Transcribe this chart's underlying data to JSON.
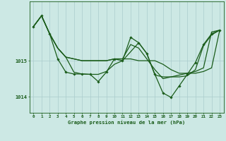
{
  "xlabel": "Graphe pression niveau de la mer (hPa)",
  "background_color": "#cce8e4",
  "grid_color": "#aacccc",
  "line_color": "#1a5c1a",
  "x_ticks": [
    0,
    1,
    2,
    3,
    4,
    5,
    6,
    7,
    8,
    9,
    10,
    11,
    12,
    13,
    14,
    15,
    16,
    17,
    18,
    19,
    20,
    21,
    22,
    23
  ],
  "y_ticks": [
    1014,
    1015
  ],
  "ylim": [
    1013.55,
    1016.65
  ],
  "xlim": [
    -0.5,
    23.5
  ],
  "series": [
    {
      "x": [
        0,
        1,
        2,
        3,
        4,
        5,
        6,
        7,
        8,
        9,
        10,
        11,
        12,
        13,
        14,
        15,
        16,
        17,
        18,
        19,
        20,
        21,
        22,
        23
      ],
      "y": [
        1015.95,
        1016.25,
        1015.75,
        1015.35,
        1015.1,
        1015.05,
        1015.0,
        1015.0,
        1015.0,
        1015.0,
        1015.05,
        1015.05,
        1015.05,
        1015.0,
        1015.0,
        1015.0,
        1014.9,
        1014.75,
        1014.65,
        1014.65,
        1014.65,
        1014.7,
        1014.8,
        1015.85
      ],
      "has_markers": false,
      "linewidth": 0.9
    },
    {
      "x": [
        0,
        1,
        2,
        3,
        4,
        5,
        6,
        7,
        8,
        9,
        10,
        11,
        12,
        13,
        14,
        15,
        16,
        17,
        18,
        19,
        20,
        21,
        22,
        23
      ],
      "y": [
        1015.95,
        1016.25,
        1015.75,
        1015.35,
        1015.1,
        1015.05,
        1015.0,
        1015.0,
        1015.0,
        1015.0,
        1015.05,
        1015.05,
        1015.45,
        1015.35,
        1015.05,
        1014.75,
        1014.5,
        1014.55,
        1014.6,
        1014.65,
        1014.7,
        1014.8,
        1015.8,
        1015.85
      ],
      "has_markers": false,
      "linewidth": 0.9
    },
    {
      "x": [
        0,
        1,
        2,
        3,
        4,
        5,
        6,
        7,
        8,
        9,
        10,
        11,
        12,
        13,
        14,
        15,
        16,
        17,
        18,
        19,
        20,
        21,
        22,
        23
      ],
      "y": [
        1015.95,
        1016.25,
        1015.75,
        1015.35,
        1015.1,
        1014.68,
        1014.63,
        1014.62,
        1014.62,
        1014.7,
        1014.9,
        1015.0,
        1015.25,
        1015.5,
        1015.2,
        1014.6,
        1014.55,
        1014.55,
        1014.55,
        1014.58,
        1014.75,
        1015.42,
        1015.72,
        1015.85
      ],
      "has_markers": false,
      "linewidth": 0.9
    },
    {
      "x": [
        0,
        1,
        2,
        3,
        4,
        5,
        6,
        7,
        8,
        9,
        10,
        11,
        12,
        13,
        14,
        15,
        16,
        17,
        18,
        19,
        20,
        21,
        22,
        23
      ],
      "y": [
        1015.95,
        1016.25,
        1015.75,
        1015.05,
        1014.68,
        1014.63,
        1014.63,
        1014.62,
        1014.42,
        1014.68,
        1015.05,
        1015.0,
        1015.65,
        1015.5,
        1015.2,
        1014.62,
        1014.1,
        1013.98,
        1014.3,
        1014.62,
        1014.95,
        1015.45,
        1015.75,
        1015.85
      ],
      "has_markers": true,
      "linewidth": 0.9
    }
  ]
}
